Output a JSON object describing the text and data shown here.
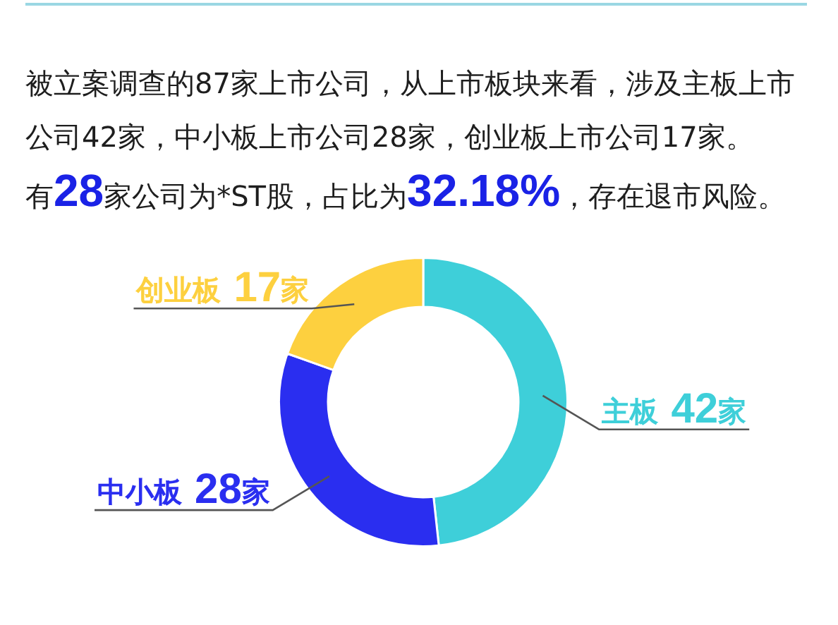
{
  "chart_data": {
    "type": "donut",
    "title": "被立案调查的87家上市公司，从上市板块来看，涉及主板上市公司42家，中小板上市公司28家，创业板上市公司17家。",
    "subtitle": "有28家公司为*ST股，占比为32.18%，存在退市风险。",
    "categories": [
      "主板",
      "中小板",
      "创业板"
    ],
    "values": [
      42,
      28,
      17
    ],
    "colors": [
      "#3ecfd9",
      "#2a2ef0",
      "#fdd03f"
    ],
    "value_labels": [
      "42家",
      "28家",
      "17家"
    ]
  }
}
